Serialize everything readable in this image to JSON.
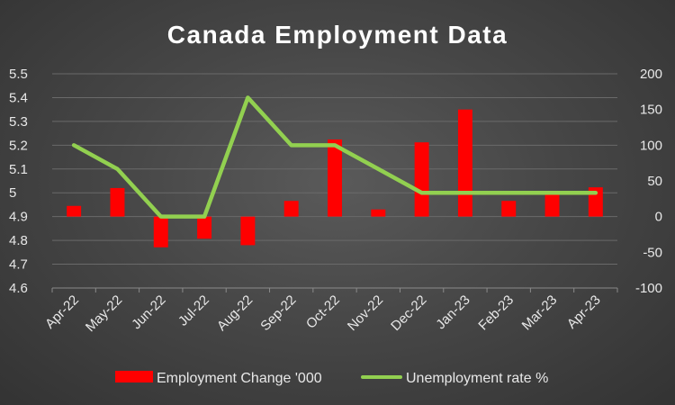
{
  "chart_data": {
    "type": "bar+line",
    "title": "Canada Employment Data",
    "categories": [
      "Apr-22",
      "May-22",
      "Jun-22",
      "Jul-22",
      "Aug-22",
      "Sep-22",
      "Oct-22",
      "Nov-22",
      "Dec-22",
      "Jan-23",
      "Feb-23",
      "Mar-23",
      "Apr-23"
    ],
    "series": [
      {
        "name": "Employment Change '000",
        "type": "bar",
        "axis": "right",
        "color": "#ff0000",
        "values": [
          15,
          40,
          -43,
          -31,
          -40,
          22,
          108,
          10,
          104,
          150,
          22,
          35,
          41
        ]
      },
      {
        "name": "Unemployment rate %",
        "type": "line",
        "axis": "left",
        "color": "#92d050",
        "values": [
          5.2,
          5.1,
          4.9,
          4.9,
          5.4,
          5.2,
          5.2,
          5.1,
          5.0,
          5.0,
          5.0,
          5.0,
          5.0
        ]
      }
    ],
    "y_left": {
      "min": 4.6,
      "max": 5.5,
      "step": 0.1,
      "ticks": [
        "4.6",
        "4.7",
        "4.8",
        "4.9",
        "5",
        "5.1",
        "5.2",
        "5.3",
        "5.4",
        "5.5"
      ]
    },
    "y_right": {
      "min": -100,
      "max": 200,
      "step": 50,
      "ticks": [
        "-100",
        "-50",
        "0",
        "50",
        "100",
        "150",
        "200"
      ]
    },
    "grid": true,
    "legend_position": "bottom"
  }
}
